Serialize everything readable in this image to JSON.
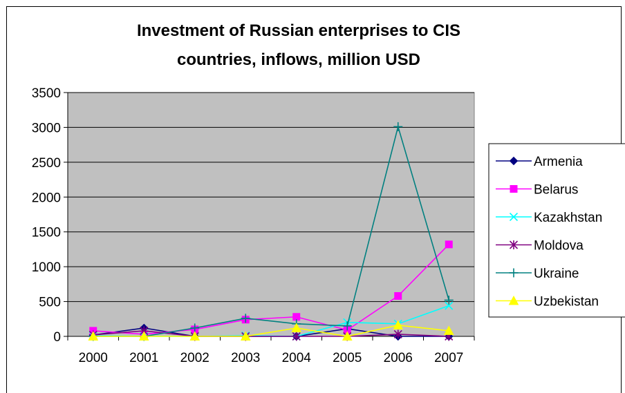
{
  "chart_data": {
    "type": "line",
    "title": [
      "Investment of Russian enterprises to CIS",
      "countries, inflows, million USD"
    ],
    "x": [
      "2000",
      "2001",
      "2002",
      "2003",
      "2004",
      "2005",
      "2006",
      "2007"
    ],
    "ylim": [
      0,
      3500
    ],
    "yticks": [
      0,
      500,
      1000,
      1500,
      2000,
      2500,
      3000,
      3500
    ],
    "grid": true,
    "plot_background": "#c0c0c0",
    "legend_position": "right",
    "series": [
      {
        "name": "Armenia",
        "color": "#000080",
        "marker": "diamond",
        "values": [
          20,
          120,
          0,
          0,
          0,
          110,
          0,
          0
        ]
      },
      {
        "name": "Belarus",
        "color": "#ff00ff",
        "marker": "square",
        "values": [
          80,
          30,
          100,
          240,
          280,
          90,
          580,
          1320
        ]
      },
      {
        "name": "Kazakhstan",
        "color": "#00ffff",
        "marker": "x",
        "values": [
          10,
          0,
          0,
          10,
          0,
          200,
          180,
          440
        ]
      },
      {
        "name": "Moldova",
        "color": "#800080",
        "marker": "asterisk",
        "values": [
          20,
          80,
          0,
          0,
          0,
          0,
          30,
          0
        ]
      },
      {
        "name": "Ukraine",
        "color": "#008080",
        "marker": "plus",
        "values": [
          0,
          0,
          120,
          260,
          180,
          150,
          3010,
          520
        ]
      },
      {
        "name": "Uzbekistan",
        "color": "#ffff00",
        "marker": "triangle",
        "values": [
          0,
          0,
          0,
          0,
          120,
          0,
          160,
          80
        ]
      }
    ]
  }
}
